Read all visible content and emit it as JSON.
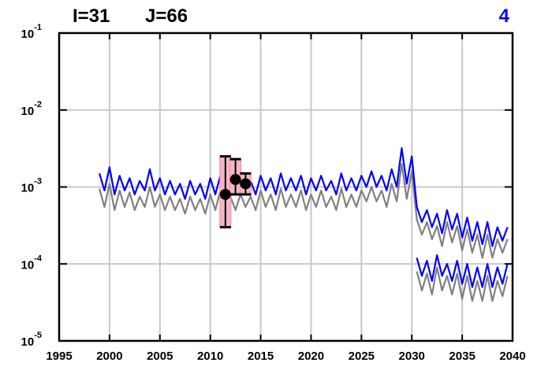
{
  "chart_data": {
    "type": "line",
    "title_parts": [
      "I=31",
      "J=66",
      "4"
    ],
    "x": [
      1999,
      1999.5,
      2000,
      2000.5,
      2001,
      2001.5,
      2002,
      2002.5,
      2003,
      2003.5,
      2004,
      2004.5,
      2005,
      2005.5,
      2006,
      2006.5,
      2007,
      2007.5,
      2008,
      2008.5,
      2009,
      2009.5,
      2010,
      2010.5,
      2011,
      2011.5,
      2012,
      2012.5,
      2013,
      2013.5,
      2014,
      2014.5,
      2015,
      2015.5,
      2016,
      2016.5,
      2017,
      2017.5,
      2018,
      2018.5,
      2019,
      2019.5,
      2020,
      2020.5,
      2021,
      2021.5,
      2022,
      2022.5,
      2023,
      2023.5,
      2024,
      2024.5,
      2025,
      2025.5,
      2026,
      2026.5,
      2027,
      2027.5,
      2028,
      2028.5,
      2029,
      2029.5,
      2030,
      2030.5,
      2031,
      2031.5,
      2032,
      2032.5,
      2033,
      2033.5,
      2034,
      2034.5,
      2035,
      2035.5,
      2036,
      2036.5,
      2037,
      2037.5,
      2038,
      2038.5,
      2039,
      2039.5
    ],
    "series": [
      {
        "color": "#808080",
        "values": [
          0.00095,
          0.00055,
          0.0011,
          0.0005,
          0.0009,
          0.00055,
          0.00085,
          0.0005,
          0.00075,
          0.00055,
          0.001,
          0.00055,
          0.0008,
          0.0005,
          0.00075,
          0.0005,
          0.0007,
          0.00045,
          0.00075,
          0.0005,
          0.0007,
          0.00045,
          0.0008,
          0.0005,
          0.0009,
          0.00055,
          0.00075,
          0.0005,
          0.0008,
          0.00055,
          0.00075,
          0.0005,
          0.0009,
          0.00055,
          0.0008,
          0.0005,
          0.00095,
          0.00055,
          0.0008,
          0.00055,
          0.0009,
          0.0005,
          0.0008,
          0.00055,
          0.0009,
          0.00055,
          0.00075,
          0.0005,
          0.00095,
          0.00055,
          0.0008,
          0.00055,
          0.0009,
          0.00065,
          0.001,
          0.00065,
          0.0009,
          0.00055,
          0.0011,
          0.00065,
          0.002,
          0.0007,
          0.0016,
          0.00038,
          0.00024,
          0.00035,
          0.00021,
          0.00031,
          0.00017,
          0.00035,
          0.00019,
          0.00031,
          0.00015,
          0.00028,
          0.00014,
          0.00024,
          0.00012,
          0.00024,
          0.00012,
          0.00021,
          0.00014,
          0.00021
        ]
      },
      {
        "color": "#0000ff",
        "values": [
          0.0015,
          0.0009,
          0.0018,
          0.0008,
          0.0014,
          0.0009,
          0.0013,
          0.0008,
          0.0012,
          0.0009,
          0.0017,
          0.0009,
          0.0013,
          0.0008,
          0.0012,
          0.0008,
          0.0011,
          0.0007,
          0.0012,
          0.0008,
          0.0011,
          0.0007,
          0.0013,
          0.0008,
          0.0014,
          0.0009,
          0.0012,
          0.0008,
          0.0013,
          0.0009,
          0.0012,
          0.0008,
          0.0014,
          0.0009,
          0.0013,
          0.0008,
          0.0015,
          0.0009,
          0.0013,
          0.0009,
          0.0014,
          0.0008,
          0.0013,
          0.0009,
          0.0014,
          0.0009,
          0.0012,
          0.0008,
          0.0015,
          0.0009,
          0.0013,
          0.0009,
          0.0014,
          0.001,
          0.0016,
          0.001,
          0.0014,
          0.0009,
          0.0017,
          0.001,
          0.0032,
          0.0011,
          0.0025,
          0.00055,
          0.00035,
          0.0005,
          0.0003,
          0.00045,
          0.00025,
          0.0005,
          0.00028,
          0.00045,
          0.00022,
          0.0004,
          0.0002,
          0.00035,
          0.00018,
          0.00035,
          0.00017,
          0.0003,
          0.0002,
          0.0003
        ]
      },
      {
        "color": "#808080",
        "values": [
          null,
          null,
          null,
          null,
          null,
          null,
          null,
          null,
          null,
          null,
          null,
          null,
          null,
          null,
          null,
          null,
          null,
          null,
          null,
          null,
          null,
          null,
          null,
          null,
          null,
          null,
          null,
          null,
          null,
          null,
          null,
          null,
          null,
          null,
          null,
          null,
          null,
          null,
          null,
          null,
          null,
          null,
          null,
          null,
          null,
          null,
          null,
          null,
          null,
          null,
          null,
          null,
          null,
          null,
          null,
          null,
          null,
          null,
          null,
          null,
          null,
          null,
          null,
          8e-05,
          4.5e-05,
          7.5e-05,
          4e-05,
          9e-05,
          4.5e-05,
          7e-05,
          4e-05,
          7.5e-05,
          3.5e-05,
          7e-05,
          3.3e-05,
          6e-05,
          3.3e-05,
          7e-05,
          3.3e-05,
          6e-05,
          3.8e-05,
          7e-05
        ]
      },
      {
        "color": "#0000ff",
        "values": [
          null,
          null,
          null,
          null,
          null,
          null,
          null,
          null,
          null,
          null,
          null,
          null,
          null,
          null,
          null,
          null,
          null,
          null,
          null,
          null,
          null,
          null,
          null,
          null,
          null,
          null,
          null,
          null,
          null,
          null,
          null,
          null,
          null,
          null,
          null,
          null,
          null,
          null,
          null,
          null,
          null,
          null,
          null,
          null,
          null,
          null,
          null,
          null,
          null,
          null,
          null,
          null,
          null,
          null,
          null,
          null,
          null,
          null,
          null,
          null,
          null,
          null,
          null,
          0.00012,
          7e-05,
          0.00011,
          6e-05,
          0.00013,
          7e-05,
          0.0001,
          6e-05,
          0.00011,
          5.5e-05,
          0.0001,
          5e-05,
          9e-05,
          5e-05,
          0.0001,
          5e-05,
          9e-05,
          5.5e-05,
          0.0001
        ]
      }
    ],
    "observations": {
      "x": [
        2011.5,
        2012.5,
        2013.5
      ],
      "values": [
        0.0008,
        0.00125,
        0.0011
      ],
      "low": [
        0.0003,
        0.0008,
        0.0008
      ],
      "high": [
        0.0025,
        0.0023,
        0.0015
      ]
    },
    "xlim": [
      1995,
      2040
    ],
    "xticks": [
      1995,
      2000,
      2005,
      2010,
      2015,
      2020,
      2025,
      2030,
      2035,
      2040
    ],
    "ylim": [
      1e-05,
      0.1
    ],
    "ylog": true,
    "yticks": [
      {
        "value": 1e-05,
        "label": "10",
        "exponent": "-5"
      },
      {
        "value": 0.0001,
        "label": "10",
        "exponent": "-4"
      },
      {
        "value": 0.001,
        "label": "10",
        "exponent": "-3"
      },
      {
        "value": 0.01,
        "label": "10",
        "exponent": "-2"
      },
      {
        "value": 0.1,
        "label": "10",
        "exponent": "-1"
      }
    ],
    "grid": true
  }
}
